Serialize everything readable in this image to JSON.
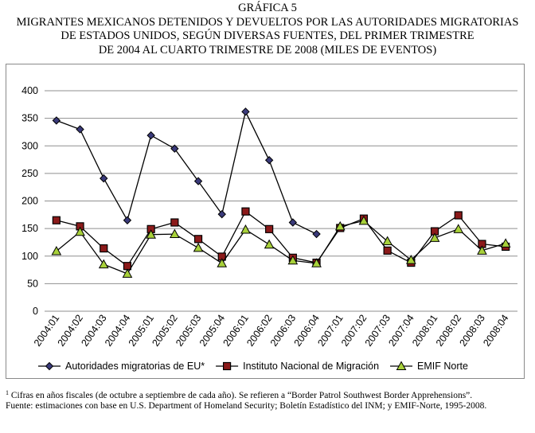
{
  "title": {
    "line1": "GRÁFICA 5",
    "line2": "MIGRANTES MEXICANOS DETENIDOS Y DEVUELTOS POR LAS AUTORIDADES MIGRATORIAS",
    "line3": "DE ESTADOS UNIDOS, SEGÚN DIVERSAS FUENTES,  DEL PRIMER TRIMESTRE",
    "line4": "DE 2004 AL CUARTO TRIMESTRE DE 2008 (MILES DE EVENTOS)"
  },
  "notes": {
    "footnote_mark": "1",
    "footnote": "Cifras en años fiscales (de octubre a septiembre de cada año). Se refieren a “Border Patrol Southwest Border Apprehensions”.",
    "source": "Fuente: estimaciones con base en U.S. Department of Homeland Security; Boletín Estadístico del INM;  y EMIF-Norte, 1995-2008."
  },
  "colors": {
    "line": "#000000",
    "series1_marker": "#3a3a7a",
    "series2_marker": "#8b1a1a",
    "series3_marker": "#a8d13a"
  },
  "chart_data": {
    "type": "line",
    "categories": [
      "2004:01",
      "2004:02",
      "2004:03",
      "2004:04",
      "2005:01",
      "2005:02",
      "2005:03",
      "2005:04",
      "2006:01",
      "2006:02",
      "2006:03",
      "2006:04",
      "2007:01",
      "2007:02",
      "2007:03",
      "2007:04",
      "2008:01",
      "2008:02",
      "2008:03",
      "2008:04"
    ],
    "ylim": [
      0,
      400
    ],
    "yticks": [
      "0",
      "50",
      "100",
      "150",
      "200",
      "250",
      "300",
      "350",
      "400"
    ],
    "grid": "horizontal",
    "legend_position": "bottom",
    "series": [
      {
        "name": "Autoridades migratorias de EU*",
        "marker": "diamond",
        "values": [
          346,
          330,
          241,
          165,
          319,
          295,
          236,
          176,
          362,
          274,
          161,
          140,
          null,
          null,
          null,
          null,
          null,
          null,
          null,
          null
        ]
      },
      {
        "name": "Instituto Nacional de Migración",
        "marker": "square",
        "values": [
          165,
          154,
          114,
          82,
          149,
          161,
          131,
          99,
          181,
          149,
          97,
          88,
          151,
          168,
          110,
          88,
          145,
          174,
          122,
          117
        ]
      },
      {
        "name": "EMIF Norte",
        "marker": "triangle",
        "values": [
          109,
          144,
          85,
          68,
          139,
          140,
          115,
          87,
          148,
          121,
          92,
          87,
          154,
          164,
          127,
          93,
          133,
          149,
          110,
          123
        ]
      }
    ]
  }
}
